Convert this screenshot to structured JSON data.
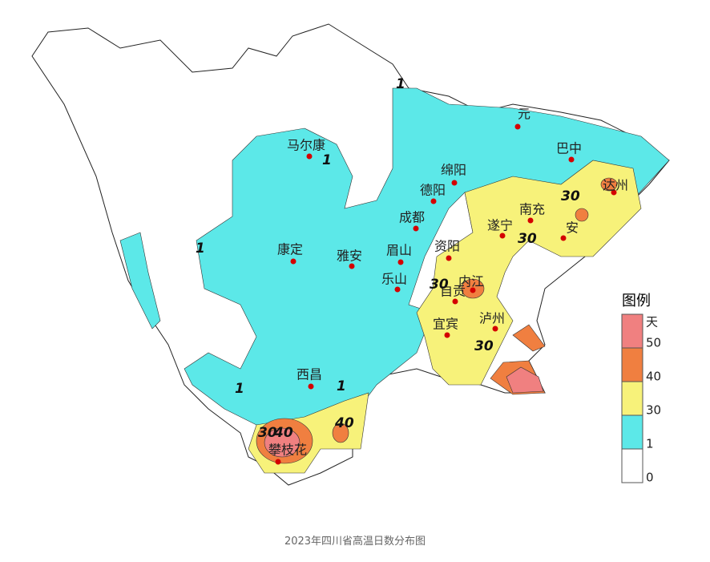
{
  "map": {
    "cities": [
      "马尔康",
      "元",
      "巴中",
      "绵阳",
      "达州",
      "德阳",
      "南充",
      "成都",
      "遂宁",
      "安",
      "康定",
      "雅安",
      "眉山",
      "资阳",
      "乐山",
      "内江",
      "自贡",
      "宜宾",
      "泸州",
      "西昌",
      "攀枝花"
    ],
    "contour_labels": [
      "1",
      "1",
      "1",
      "1",
      "1",
      "30",
      "30",
      "30",
      "30",
      "30",
      "40",
      "40"
    ],
    "legend": {
      "title": "图例",
      "unit": "天",
      "classes": [
        {
          "label": "50",
          "color": "#f08080"
        },
        {
          "label": "40",
          "color": "#f07f40"
        },
        {
          "label": "30",
          "color": "#f7f27a"
        },
        {
          "label": "1",
          "color": "#5ce8e8"
        },
        {
          "label": "0",
          "color": "#ffffff"
        }
      ]
    },
    "caption": "2023年四川省高温日数分布图"
  }
}
